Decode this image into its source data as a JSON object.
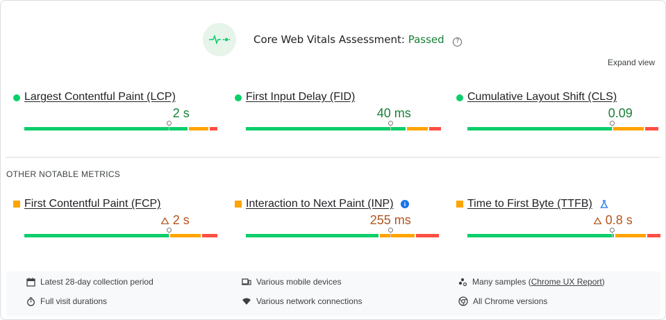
{
  "header": {
    "title": "Core Web Vitals Assessment:",
    "status": "Passed",
    "help_icon": "help-circle-icon",
    "status_color": "#188038"
  },
  "expand_view": "Expand view",
  "core_metrics": [
    {
      "name": "Largest Contentful Paint (LCP)",
      "value": "2 s",
      "rating": "good",
      "distribution": [
        0.85,
        0.1,
        0.04
      ],
      "p75_marker": 0.75
    },
    {
      "name": "First Input Delay (FID)",
      "value": "40 ms",
      "rating": "good",
      "distribution": [
        0.83,
        0.11,
        0.06
      ],
      "p75_marker": 0.75
    },
    {
      "name": "Cumulative Layout Shift (CLS)",
      "value": "0.09",
      "rating": "good",
      "distribution": [
        0.75,
        0.16,
        0.07
      ],
      "p75_marker": 0.75
    }
  ],
  "other_heading": "OTHER NOTABLE METRICS",
  "other_metrics": [
    {
      "name": "First Contentful Paint (FCP)",
      "value": "2 s",
      "rating": "ni",
      "warning": true,
      "distribution": [
        0.75,
        0.16,
        0.08
      ],
      "p75_marker": 0.75
    },
    {
      "name": "Interaction to Next Paint (INP)",
      "value": "255 ms",
      "rating": "ni",
      "warning": false,
      "badge_icon": "info-icon",
      "distribution": [
        0.69,
        0.18,
        0.12
      ],
      "p75_marker": 0.75
    },
    {
      "name": "Time to First Byte (TTFB)",
      "value": "0.8 s",
      "rating": "ni",
      "warning": true,
      "badge_icon": "flask-icon",
      "distribution": [
        0.76,
        0.16,
        0.07
      ],
      "p75_marker": 0.75
    }
  ],
  "colors": {
    "good": "#0cce6b",
    "ni": "#ffa400",
    "poor": "#ff4e42"
  },
  "footer": {
    "period": "Latest 28-day collection period",
    "devices": "Various mobile devices",
    "samples_prefix": "Many samples (",
    "samples_link": "Chrome UX Report",
    "samples_suffix": ")",
    "durations": "Full visit durations",
    "network": "Various network connections",
    "versions": "All Chrome versions"
  }
}
